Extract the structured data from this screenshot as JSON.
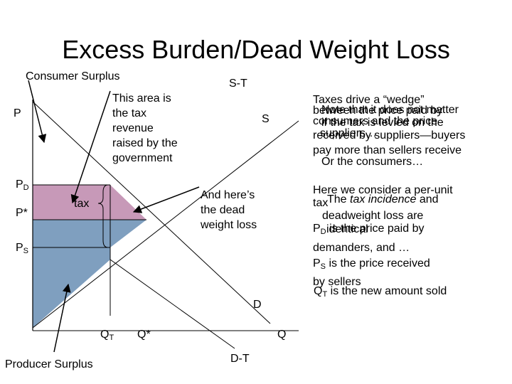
{
  "title": "Excess Burden/Dead Weight Loss",
  "labels": {
    "consumer_surplus": "Consumer Surplus",
    "producer_surplus": "Producer Surplus",
    "supply_minus_tax": "S-T",
    "supply": "S",
    "demand": "D",
    "demand_minus_tax": "D-T",
    "price_axis": "P",
    "quantity_axis": "Q",
    "price_demanders": {
      "main": "P",
      "sub": "D"
    },
    "price_equilibrium": "P*",
    "price_sellers": {
      "main": "P",
      "sub": "S"
    },
    "quantity_taxed": {
      "main": "Q",
      "sub": "T"
    },
    "quantity_equilibrium": "Q*",
    "tax": "tax"
  },
  "annotations": {
    "tax_revenue": [
      "This area is",
      "the tax",
      "revenue",
      "raised by the",
      "government"
    ],
    "deadweight": [
      "And here’s",
      "the dead",
      "weight loss"
    ]
  },
  "notes": {
    "wedge": [
      "Taxes drive a “wedge”",
      "between the price paid by",
      "consumers and the price",
      "received by suppliers—buyers",
      "pay more than sellers receive"
    ],
    "not_matter": [
      "Note that it does not matter",
      "if the tax is levied on the",
      "suppliers…",
      "Or the consumers…"
    ],
    "here": {
      "line1": "Here we consider a per-unit",
      "line2": "tax",
      "line3": "deadweight loss are",
      "line4_main": "P",
      "line4_sub": "D",
      "line4_rest": " is the price paid by",
      "line5": "demanders, and …",
      "line6_main": "P",
      "line6_sub": "S",
      "line6_rest": " is the price received",
      "line7": "by sellers"
    },
    "incidence": {
      "prefix": "The ",
      "italic": "tax incidence",
      "suffix": " and"
    },
    "identical": "identical",
    "new_amount": {
      "main": "Q",
      "sub": "T",
      "rest": " is the new amount sold"
    }
  },
  "colors": {
    "consumer_surplus": "#c799b8",
    "producer_surplus": "#7f9fbf",
    "lines": "#000000"
  }
}
